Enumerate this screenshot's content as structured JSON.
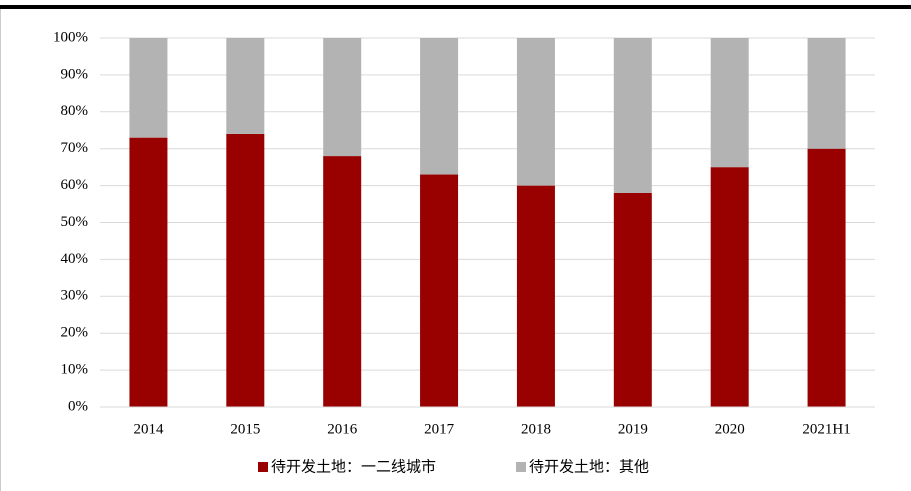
{
  "chart_data": {
    "type": "stacked-bar",
    "categories": [
      "2014",
      "2015",
      "2016",
      "2017",
      "2018",
      "2019",
      "2020",
      "2021H1"
    ],
    "series": [
      {
        "name": "待开发土地：一二线城市",
        "color": "#990000",
        "values": [
          73,
          74,
          68,
          63,
          60,
          58,
          65,
          70
        ]
      },
      {
        "name": "待开发土地：其他",
        "color": "#b3b3b3",
        "values": [
          27,
          26,
          32,
          37,
          40,
          42,
          35,
          30
        ]
      }
    ],
    "ylim": [
      0,
      100
    ],
    "yticks": [
      {
        "value": 0,
        "label": "0%"
      },
      {
        "value": 10,
        "label": "10%"
      },
      {
        "value": 20,
        "label": "20%"
      },
      {
        "value": 30,
        "label": "30%"
      },
      {
        "value": 40,
        "label": "40%"
      },
      {
        "value": 50,
        "label": "50%"
      },
      {
        "value": 60,
        "label": "60%"
      },
      {
        "value": 70,
        "label": "70%"
      },
      {
        "value": 80,
        "label": "80%"
      },
      {
        "value": 90,
        "label": "90%"
      },
      {
        "value": 100,
        "label": "100%"
      }
    ],
    "grid": true,
    "legend": "bottom"
  }
}
